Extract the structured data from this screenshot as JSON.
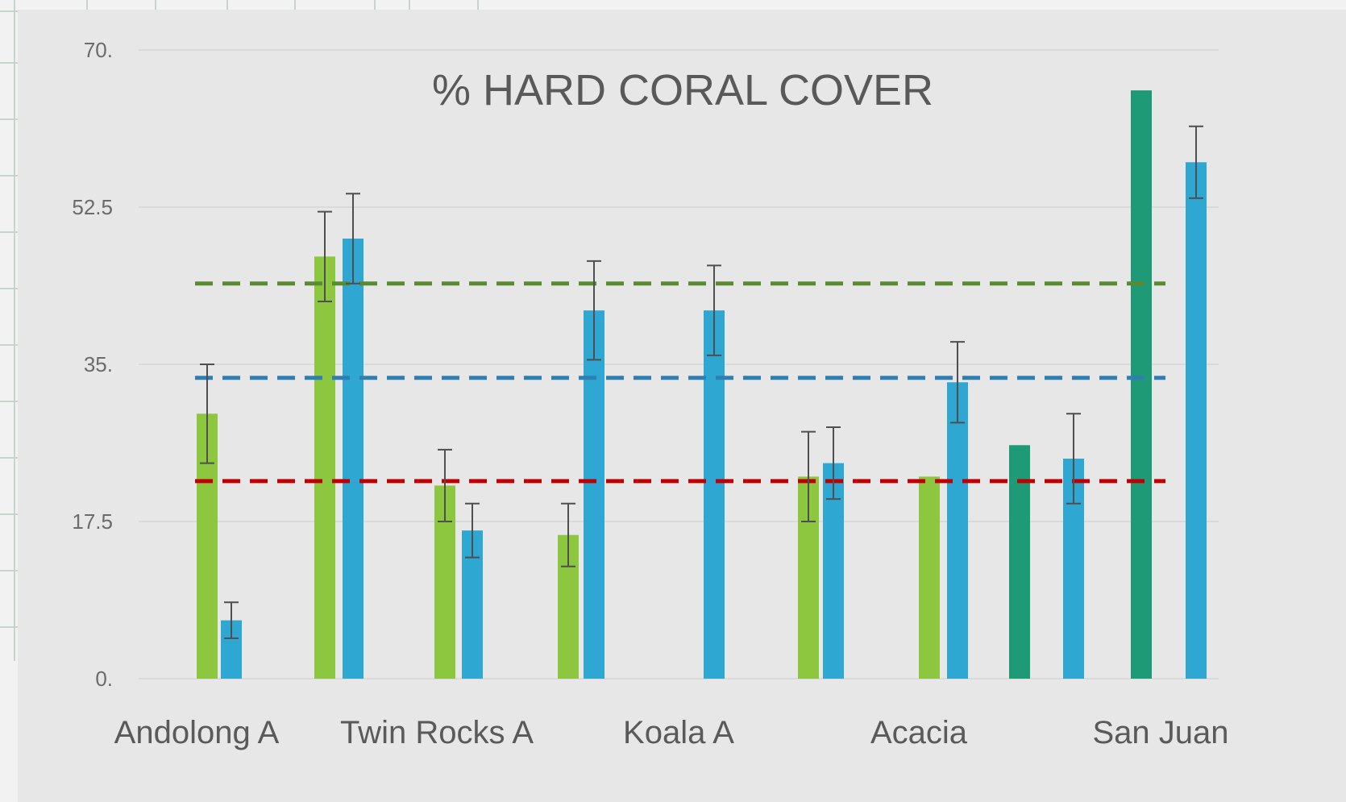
{
  "chart_data": {
    "type": "bar",
    "title": "% HARD CORAL COVER",
    "xlabel": "",
    "ylabel": "",
    "ylim": [
      0,
      70
    ],
    "yticks": [
      "0.",
      "17.5",
      "35.",
      "52.5",
      "70."
    ],
    "grid": true,
    "legend": "none",
    "category_labels": [
      "Andolong A",
      "Twin Rocks A",
      "Koala A",
      "Acacia",
      "San Juan"
    ],
    "bars": [
      {
        "value": 29.5,
        "error": 5.5,
        "color": "#8dc63f"
      },
      {
        "value": 6.5,
        "error": 2.0,
        "color": "#2ea8d2"
      },
      {
        "value": 47.0,
        "error": 5.0,
        "color": "#8dc63f"
      },
      {
        "value": 49.0,
        "error": 5.0,
        "color": "#2ea8d2"
      },
      {
        "value": 21.5,
        "error": 4.0,
        "color": "#8dc63f"
      },
      {
        "value": 16.5,
        "error": 3.0,
        "color": "#2ea8d2"
      },
      {
        "value": 16.0,
        "error": 3.5,
        "color": "#8dc63f"
      },
      {
        "value": 41.0,
        "error": 5.5,
        "color": "#2ea8d2"
      },
      {
        "value": 41.0,
        "error": 5.0,
        "color": "#2ea8d2"
      },
      {
        "value": 22.5,
        "error": 5.0,
        "color": "#8dc63f"
      },
      {
        "value": 24.0,
        "error": 4.0,
        "color": "#2ea8d2"
      },
      {
        "value": 22.5,
        "error": 0,
        "color": "#8dc63f"
      },
      {
        "value": 33.0,
        "error": 4.5,
        "color": "#2ea8d2"
      },
      {
        "value": 26.0,
        "error": 0,
        "color": "#1f9a76"
      },
      {
        "value": 24.5,
        "error": 5.0,
        "color": "#2ea8d2"
      },
      {
        "value": 65.5,
        "error": 0,
        "color": "#1f9a76"
      },
      {
        "value": 57.5,
        "error": 4.0,
        "color": "#2ea8d2"
      }
    ],
    "reference_lines": [
      {
        "value": 44.0,
        "color": "#5a8a32"
      },
      {
        "value": 33.5,
        "color": "#2f7fb3"
      },
      {
        "value": 22.0,
        "color": "#c00000"
      }
    ]
  }
}
